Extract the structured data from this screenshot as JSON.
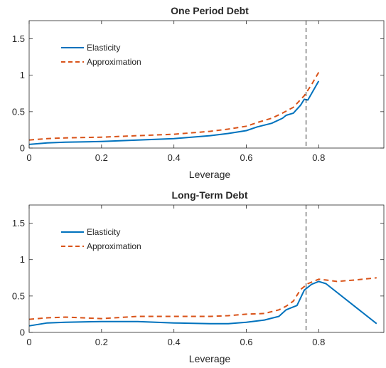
{
  "chart_data": [
    {
      "type": "line",
      "title": "One Period Debt",
      "xlabel": "Leverage",
      "ylabel": "",
      "xlim": [
        0,
        0.98
      ],
      "ylim": [
        0,
        1.75
      ],
      "xticks": [
        "0",
        "0.2",
        "0.4",
        "0.6",
        "0.8"
      ],
      "yticks": [
        "0",
        "0.5",
        "1",
        "1.5"
      ],
      "xtick_values": [
        0,
        0.2,
        0.4,
        0.6,
        0.8
      ],
      "ytick_values": [
        0,
        0.5,
        1,
        1.5
      ],
      "vline": 0.765,
      "legend": "top-left",
      "series": [
        {
          "name": "Elasticity",
          "color": "#0072BD",
          "style": "solid",
          "x": [
            0,
            0.05,
            0.1,
            0.2,
            0.3,
            0.4,
            0.5,
            0.55,
            0.6,
            0.63,
            0.67,
            0.7,
            0.71,
            0.73,
            0.75,
            0.76,
            0.77,
            0.8
          ],
          "y": [
            0.05,
            0.07,
            0.08,
            0.09,
            0.11,
            0.13,
            0.17,
            0.2,
            0.24,
            0.29,
            0.34,
            0.41,
            0.45,
            0.48,
            0.59,
            0.67,
            0.66,
            0.92
          ]
        },
        {
          "name": "Approximation",
          "color": "#D95319",
          "style": "dashed",
          "x": [
            0,
            0.05,
            0.1,
            0.2,
            0.3,
            0.4,
            0.5,
            0.55,
            0.6,
            0.63,
            0.67,
            0.7,
            0.73,
            0.76,
            0.78,
            0.8
          ],
          "y": [
            0.11,
            0.13,
            0.14,
            0.15,
            0.17,
            0.19,
            0.23,
            0.26,
            0.3,
            0.35,
            0.41,
            0.48,
            0.56,
            0.72,
            0.87,
            1.04
          ]
        }
      ]
    },
    {
      "type": "line",
      "title": "Long-Term Debt",
      "xlabel": "Leverage",
      "ylabel": "",
      "xlim": [
        0,
        0.98
      ],
      "ylim": [
        0,
        1.75
      ],
      "xticks": [
        "0",
        "0.2",
        "0.4",
        "0.6",
        "0.8"
      ],
      "yticks": [
        "0",
        "0.5",
        "1",
        "1.5"
      ],
      "xtick_values": [
        0,
        0.2,
        0.4,
        0.6,
        0.8
      ],
      "ytick_values": [
        0,
        0.5,
        1,
        1.5
      ],
      "vline": 0.765,
      "legend": "top-left",
      "series": [
        {
          "name": "Elasticity",
          "color": "#0072BD",
          "style": "solid",
          "x": [
            0,
            0.05,
            0.1,
            0.2,
            0.3,
            0.4,
            0.5,
            0.55,
            0.6,
            0.65,
            0.69,
            0.71,
            0.72,
            0.74,
            0.76,
            0.78,
            0.8,
            0.82,
            0.96
          ],
          "y": [
            0.09,
            0.13,
            0.14,
            0.15,
            0.15,
            0.13,
            0.12,
            0.12,
            0.14,
            0.17,
            0.22,
            0.31,
            0.33,
            0.37,
            0.58,
            0.66,
            0.7,
            0.67,
            0.12
          ]
        },
        {
          "name": "Approximation",
          "color": "#D95319",
          "style": "dashed",
          "x": [
            0,
            0.05,
            0.1,
            0.2,
            0.3,
            0.4,
            0.5,
            0.55,
            0.6,
            0.65,
            0.69,
            0.71,
            0.73,
            0.75,
            0.77,
            0.8,
            0.82,
            0.85,
            0.9,
            0.96
          ],
          "y": [
            0.18,
            0.2,
            0.21,
            0.19,
            0.22,
            0.22,
            0.22,
            0.23,
            0.25,
            0.26,
            0.31,
            0.36,
            0.43,
            0.59,
            0.67,
            0.73,
            0.72,
            0.7,
            0.72,
            0.75
          ]
        }
      ]
    }
  ]
}
